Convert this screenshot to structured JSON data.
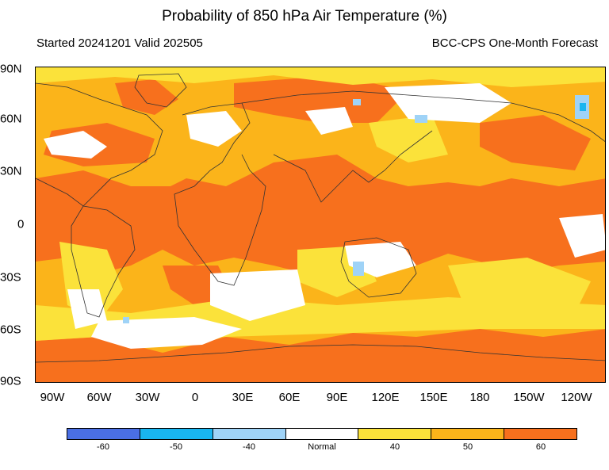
{
  "title": "Probability of 850 hPa Air Temperature (%)",
  "subtitle_left": "Started 20241201  Valid 202505",
  "subtitle_right": "BCC-CPS One-Month Forecast",
  "lat_labels": [
    "90N",
    "60N",
    "30N",
    "0",
    "30S",
    "60S",
    "90S"
  ],
  "lon_labels": [
    "90W",
    "60W",
    "30W",
    "0",
    "30E",
    "60E",
    "90E",
    "120E",
    "150E",
    "180",
    "150W",
    "120W"
  ],
  "colorbar": {
    "colors": [
      "#4a6fe3",
      "#19b5f0",
      "#9fd3f7",
      "#ffffff",
      "#fbe23a",
      "#fbb41a",
      "#f7701d"
    ],
    "labels": [
      "-60",
      "-50",
      "-40",
      "Normal",
      "40",
      "50",
      "60"
    ]
  }
}
